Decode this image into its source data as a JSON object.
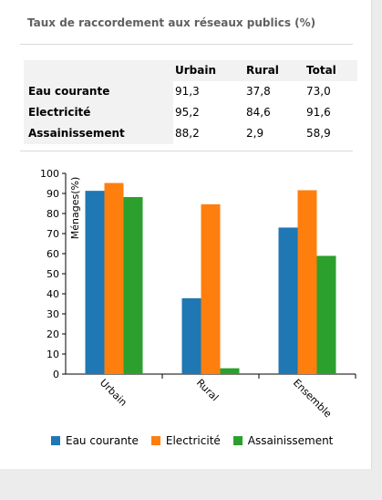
{
  "panel": {
    "title": "Taux de raccordement aux réseaux publics (%)"
  },
  "table": {
    "headers": [
      "",
      "Urbain",
      "Rural",
      "Total"
    ],
    "rows": [
      {
        "label": "Eau courante",
        "values": [
          "91,3",
          "37,8",
          "73,0"
        ]
      },
      {
        "label": "Electricité",
        "values": [
          "95,2",
          "84,6",
          "91,6"
        ]
      },
      {
        "label": "Assainissement",
        "values": [
          "88,2",
          "2,9",
          "58,9"
        ]
      }
    ]
  },
  "chart_data": {
    "type": "bar",
    "title": "",
    "xlabel": "",
    "ylabel": "Ménages(%)",
    "ylim": [
      0,
      100
    ],
    "yticks": [
      0,
      10,
      20,
      30,
      40,
      50,
      60,
      70,
      80,
      90,
      100
    ],
    "categories": [
      "Urbain",
      "Rural",
      "Ensemble"
    ],
    "series": [
      {
        "name": "Eau courante",
        "color": "#1f77b4",
        "values": [
          91.3,
          37.8,
          73.0
        ]
      },
      {
        "name": "Electricité",
        "color": "#ff7f0e",
        "values": [
          95.2,
          84.6,
          91.6
        ]
      },
      {
        "name": "Assainissement",
        "color": "#2ca02c",
        "values": [
          88.2,
          2.9,
          58.9
        ]
      }
    ],
    "grid": false,
    "legend_position": "bottom"
  }
}
